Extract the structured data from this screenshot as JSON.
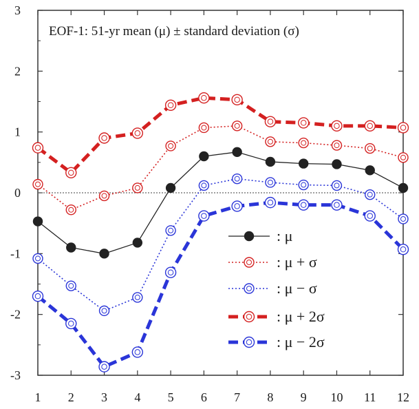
{
  "chart_data": {
    "type": "line",
    "title": "EOF-1: 51-yr mean (μ) ± standard deviation (σ)",
    "xlabel": "",
    "ylabel": "",
    "x": [
      1,
      2,
      3,
      4,
      5,
      6,
      7,
      8,
      9,
      10,
      11,
      12
    ],
    "xlim": [
      1,
      12
    ],
    "ylim": [
      -3,
      3
    ],
    "yticks": [
      3,
      2,
      1,
      0,
      -1,
      -2,
      -3
    ],
    "grid": false,
    "legend_position": "lower-right",
    "colors": {
      "mean": "#222222",
      "red": "#d42020",
      "blue": "#2a35d8",
      "zero": "#666666"
    },
    "series": [
      {
        "name": "μ",
        "legend": ":  μ",
        "style": "solid-black-filled",
        "values": [
          -0.47,
          -0.9,
          -1.0,
          -0.82,
          0.08,
          0.6,
          0.67,
          0.51,
          0.48,
          0.47,
          0.37,
          0.08
        ]
      },
      {
        "name": "μ + σ",
        "legend": ":  μ + σ",
        "style": "dotted-red-open",
        "values": [
          0.14,
          -0.28,
          -0.05,
          0.08,
          0.77,
          1.07,
          1.1,
          0.84,
          0.82,
          0.78,
          0.73,
          0.58
        ]
      },
      {
        "name": "μ − σ",
        "legend": ":  μ − σ",
        "style": "dotted-blue-open",
        "values": [
          -1.08,
          -1.53,
          -1.94,
          -1.72,
          -0.62,
          0.12,
          0.23,
          0.17,
          0.13,
          0.12,
          -0.03,
          -0.43
        ]
      },
      {
        "name": "μ + 2σ",
        "legend": ":  μ + 2σ",
        "style": "dashed-red-open",
        "values": [
          0.74,
          0.33,
          0.9,
          0.98,
          1.44,
          1.56,
          1.53,
          1.17,
          1.15,
          1.1,
          1.1,
          1.07
        ]
      },
      {
        "name": "μ − 2σ",
        "legend": ":  μ − 2σ",
        "style": "dashed-blue-open",
        "values": [
          -1.7,
          -2.15,
          -2.86,
          -2.62,
          -1.31,
          -0.38,
          -0.22,
          -0.16,
          -0.2,
          -0.2,
          -0.38,
          -0.93
        ]
      }
    ]
  }
}
